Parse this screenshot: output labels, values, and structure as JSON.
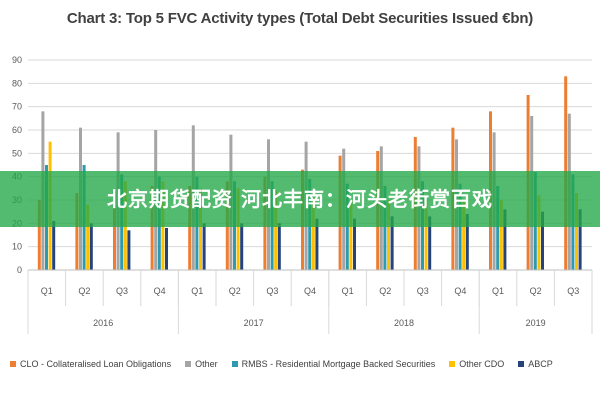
{
  "chart_data": {
    "type": "bar",
    "title": "Chart 3: Top 5 FVC Activity types (Total Debt Securities Issued €bn)",
    "ylim": [
      0,
      90
    ],
    "yticks": [
      0,
      10,
      20,
      30,
      40,
      50,
      60,
      70,
      80,
      90
    ],
    "grid": true,
    "legend_position": "bottom",
    "categories": [
      "Q1",
      "Q2",
      "Q3",
      "Q4",
      "Q1",
      "Q2",
      "Q3",
      "Q4",
      "Q1",
      "Q2",
      "Q3",
      "Q4",
      "Q1",
      "Q2",
      "Q3"
    ],
    "year_groups": [
      {
        "label": "2016",
        "start": 0,
        "end": 3
      },
      {
        "label": "2017",
        "start": 4,
        "end": 7
      },
      {
        "label": "2018",
        "start": 8,
        "end": 11
      },
      {
        "label": "2019",
        "start": 12,
        "end": 14
      }
    ],
    "series": [
      {
        "name": "CLO - Collateralised Loan Obligations",
        "color": "#ED7D31",
        "values": [
          30,
          33,
          34,
          36,
          36,
          38,
          40,
          43,
          49,
          51,
          57,
          61,
          68,
          75,
          83
        ]
      },
      {
        "name": "Other",
        "color": "#A5A5A5",
        "values": [
          68,
          61,
          59,
          60,
          62,
          58,
          56,
          55,
          52,
          53,
          53,
          56,
          59,
          66,
          67
        ]
      },
      {
        "name": "RMBS - Residential Mortgage Backed Securities",
        "color": "#2E9AAE",
        "values": [
          45,
          45,
          41,
          40,
          40,
          38,
          38,
          39,
          37,
          36,
          38,
          37,
          36,
          42,
          41
        ]
      },
      {
        "name": "Other CDO",
        "color": "#FFC000",
        "values": [
          55,
          28,
          38,
          38,
          35,
          35,
          34,
          31,
          30,
          30,
          30,
          30,
          30,
          32,
          33
        ]
      },
      {
        "name": "ABCP",
        "color": "#264478",
        "values": [
          21,
          20,
          17,
          18,
          20,
          20,
          20,
          22,
          22,
          23,
          23,
          24,
          26,
          25,
          26
        ]
      }
    ]
  },
  "watermark": {
    "text": "北京期货配资 河北丰南：河头老街赏百戏",
    "color": "#22A848"
  }
}
